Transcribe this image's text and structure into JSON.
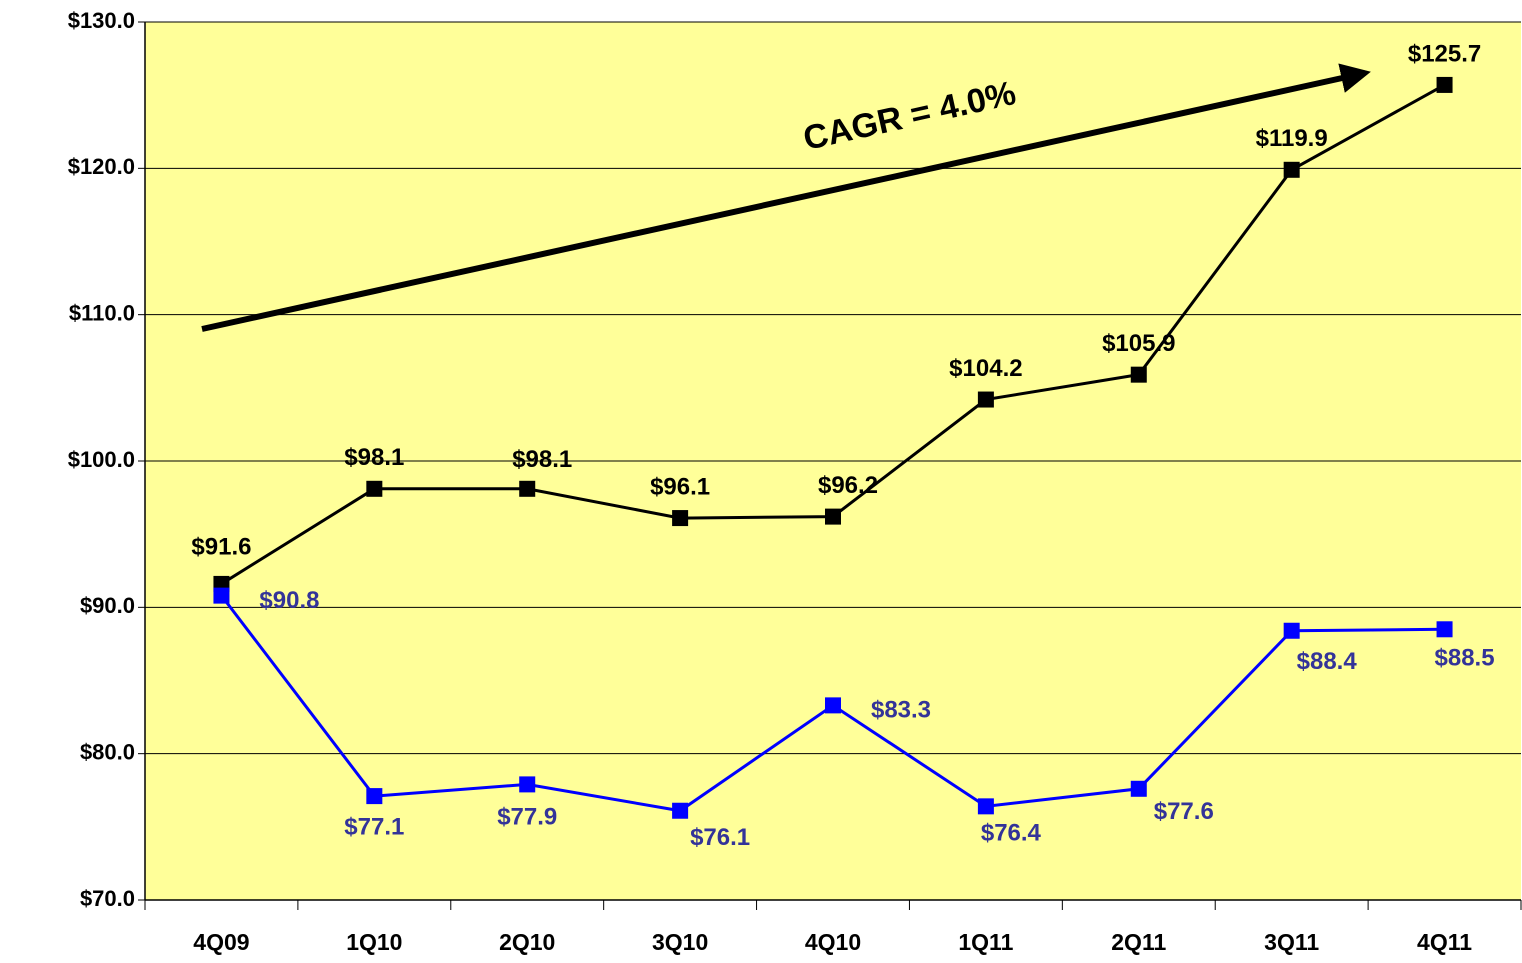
{
  "chart_data": {
    "type": "line",
    "categories": [
      "4Q09",
      "1Q10",
      "2Q10",
      "3Q10",
      "4Q10",
      "1Q11",
      "2Q11",
      "3Q11",
      "4Q11"
    ],
    "series": [
      {
        "color": "#000000",
        "label_color": "#000000",
        "values": [
          91.6,
          98.1,
          98.1,
          96.1,
          96.2,
          104.2,
          105.9,
          119.9,
          125.7
        ],
        "value_labels": [
          "$91.6",
          "$98.1",
          "$98.1",
          "$96.1",
          "$96.2",
          "$104.2",
          "$105.9",
          "$119.9",
          "$125.7"
        ]
      },
      {
        "color": "#0000ff",
        "label_color": "#333399",
        "values": [
          90.8,
          77.1,
          77.9,
          76.1,
          83.3,
          76.4,
          77.6,
          88.4,
          88.5
        ],
        "value_labels": [
          "$90.8",
          "$77.1",
          "$77.9",
          "$76.1",
          "$83.3",
          "$76.4",
          "$77.6",
          "$88.4",
          "$88.5"
        ]
      }
    ],
    "ylim": [
      70,
      130
    ],
    "yticks": [
      {
        "value": 70,
        "label": "$70.0"
      },
      {
        "value": 80,
        "label": "$80.0"
      },
      {
        "value": 90,
        "label": "$90.0"
      },
      {
        "value": 100,
        "label": "$100.0"
      },
      {
        "value": 110,
        "label": "$110.0"
      },
      {
        "value": 120,
        "label": "$120.0"
      },
      {
        "value": 130,
        "label": "$130.0"
      }
    ],
    "grid": true,
    "plot_background": "#ffff99",
    "annotations": [
      "CAGR = 4.0%"
    ]
  }
}
